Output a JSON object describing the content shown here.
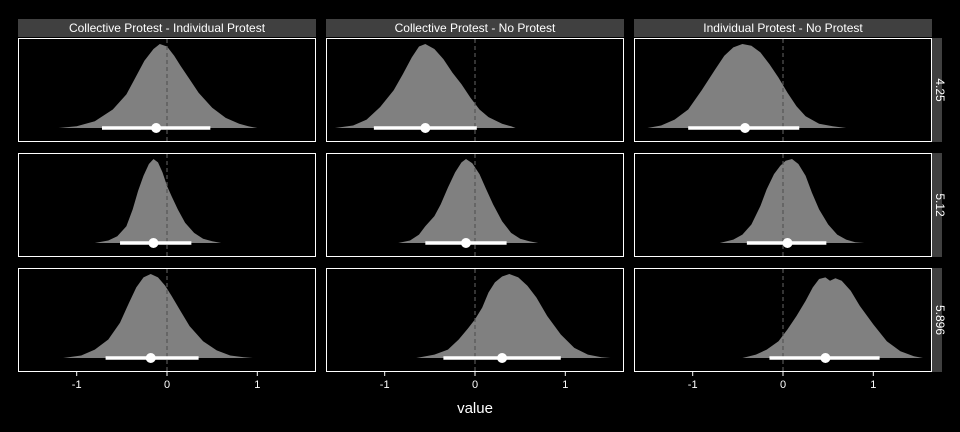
{
  "chart_data": {
    "type": "area",
    "xlabel": "value",
    "ylabel": "",
    "xlim": [
      -1.65,
      1.65
    ],
    "x_ticks": [
      "-1",
      "0",
      "1"
    ],
    "x_tick_values": [
      -1,
      0,
      1
    ],
    "reference_line_x": 0,
    "columns": [
      "Collective Protest - Individual Protest",
      "Collective Protest - No Protest",
      "Individual Protest - No Protest"
    ],
    "rows": [
      "4.25",
      "5.12",
      "5.896"
    ],
    "colors": {
      "background": "#000000",
      "density": "#808080",
      "interval": "#ffffff",
      "strip": "#404040",
      "panel_border": "#ffffff"
    },
    "panels": [
      {
        "row": "4.25",
        "col": "Collective Protest - Individual Protest",
        "point": -0.12,
        "interval": [
          -0.72,
          0.48
        ],
        "curve": [
          [
            -1.2,
            0
          ],
          [
            -1.0,
            0.02
          ],
          [
            -0.8,
            0.08
          ],
          [
            -0.6,
            0.22
          ],
          [
            -0.45,
            0.4
          ],
          [
            -0.35,
            0.6
          ],
          [
            -0.25,
            0.8
          ],
          [
            -0.15,
            0.94
          ],
          [
            -0.08,
            1.0
          ],
          [
            0.0,
            0.97
          ],
          [
            0.08,
            0.86
          ],
          [
            0.15,
            0.74
          ],
          [
            0.25,
            0.58
          ],
          [
            0.35,
            0.42
          ],
          [
            0.5,
            0.24
          ],
          [
            0.65,
            0.12
          ],
          [
            0.8,
            0.05
          ],
          [
            0.9,
            0.02
          ],
          [
            1.0,
            0
          ]
        ]
      },
      {
        "row": "4.25",
        "col": "Collective Protest - No Protest",
        "point": -0.55,
        "interval": [
          -1.12,
          0.02
        ],
        "curve": [
          [
            -1.55,
            0
          ],
          [
            -1.35,
            0.03
          ],
          [
            -1.2,
            0.1
          ],
          [
            -1.05,
            0.25
          ],
          [
            -0.9,
            0.45
          ],
          [
            -0.8,
            0.64
          ],
          [
            -0.7,
            0.84
          ],
          [
            -0.62,
            0.97
          ],
          [
            -0.55,
            1.0
          ],
          [
            -0.45,
            0.94
          ],
          [
            -0.35,
            0.82
          ],
          [
            -0.25,
            0.66
          ],
          [
            -0.15,
            0.52
          ],
          [
            -0.05,
            0.36
          ],
          [
            0.05,
            0.22
          ],
          [
            0.15,
            0.13
          ],
          [
            0.3,
            0.05
          ],
          [
            0.4,
            0.02
          ],
          [
            0.45,
            0
          ]
        ]
      },
      {
        "row": "4.25",
        "col": "Individual Protest - No Protest",
        "point": -0.42,
        "interval": [
          -1.05,
          0.18
        ],
        "curve": [
          [
            -1.5,
            0
          ],
          [
            -1.35,
            0.03
          ],
          [
            -1.2,
            0.1
          ],
          [
            -1.05,
            0.22
          ],
          [
            -0.9,
            0.45
          ],
          [
            -0.75,
            0.7
          ],
          [
            -0.65,
            0.86
          ],
          [
            -0.55,
            0.96
          ],
          [
            -0.45,
            1.0
          ],
          [
            -0.35,
            0.98
          ],
          [
            -0.25,
            0.9
          ],
          [
            -0.15,
            0.76
          ],
          [
            -0.05,
            0.6
          ],
          [
            0.05,
            0.42
          ],
          [
            0.15,
            0.26
          ],
          [
            0.25,
            0.14
          ],
          [
            0.4,
            0.05
          ],
          [
            0.55,
            0.02
          ],
          [
            0.7,
            0
          ]
        ]
      },
      {
        "row": "5.12",
        "col": "Collective Protest - Individual Protest",
        "point": -0.15,
        "interval": [
          -0.52,
          0.27
        ],
        "curve": [
          [
            -0.8,
            0
          ],
          [
            -0.65,
            0.03
          ],
          [
            -0.55,
            0.08
          ],
          [
            -0.45,
            0.2
          ],
          [
            -0.38,
            0.4
          ],
          [
            -0.32,
            0.62
          ],
          [
            -0.26,
            0.8
          ],
          [
            -0.2,
            0.94
          ],
          [
            -0.15,
            1.0
          ],
          [
            -0.1,
            0.96
          ],
          [
            -0.05,
            0.84
          ],
          [
            0.0,
            0.68
          ],
          [
            0.05,
            0.56
          ],
          [
            0.12,
            0.4
          ],
          [
            0.2,
            0.24
          ],
          [
            0.3,
            0.12
          ],
          [
            0.4,
            0.05
          ],
          [
            0.5,
            0.02
          ],
          [
            0.6,
            0
          ]
        ]
      },
      {
        "row": "5.12",
        "col": "Collective Protest - No Protest",
        "point": -0.1,
        "interval": [
          -0.55,
          0.35
        ],
        "curve": [
          [
            -0.85,
            0
          ],
          [
            -0.72,
            0.03
          ],
          [
            -0.62,
            0.1
          ],
          [
            -0.55,
            0.2
          ],
          [
            -0.45,
            0.32
          ],
          [
            -0.38,
            0.46
          ],
          [
            -0.3,
            0.66
          ],
          [
            -0.22,
            0.84
          ],
          [
            -0.15,
            0.96
          ],
          [
            -0.1,
            1.0
          ],
          [
            -0.03,
            0.95
          ],
          [
            0.05,
            0.82
          ],
          [
            0.12,
            0.65
          ],
          [
            0.2,
            0.46
          ],
          [
            0.3,
            0.26
          ],
          [
            0.4,
            0.12
          ],
          [
            0.5,
            0.05
          ],
          [
            0.6,
            0.02
          ],
          [
            0.7,
            0
          ]
        ]
      },
      {
        "row": "5.12",
        "col": "Individual Protest - No Protest",
        "point": 0.05,
        "interval": [
          -0.4,
          0.48
        ],
        "curve": [
          [
            -0.7,
            0
          ],
          [
            -0.55,
            0.04
          ],
          [
            -0.45,
            0.1
          ],
          [
            -0.35,
            0.22
          ],
          [
            -0.25,
            0.44
          ],
          [
            -0.18,
            0.64
          ],
          [
            -0.1,
            0.82
          ],
          [
            -0.03,
            0.92
          ],
          [
            0.03,
            0.98
          ],
          [
            0.1,
            1.0
          ],
          [
            0.17,
            0.94
          ],
          [
            0.25,
            0.8
          ],
          [
            0.32,
            0.6
          ],
          [
            0.4,
            0.4
          ],
          [
            0.5,
            0.22
          ],
          [
            0.6,
            0.1
          ],
          [
            0.7,
            0.04
          ],
          [
            0.8,
            0.01
          ],
          [
            0.9,
            0
          ]
        ]
      },
      {
        "row": "5.896",
        "col": "Collective Protest - Individual Protest",
        "point": -0.18,
        "interval": [
          -0.68,
          0.35
        ],
        "curve": [
          [
            -1.15,
            0
          ],
          [
            -0.95,
            0.03
          ],
          [
            -0.8,
            0.1
          ],
          [
            -0.65,
            0.22
          ],
          [
            -0.52,
            0.42
          ],
          [
            -0.42,
            0.66
          ],
          [
            -0.34,
            0.84
          ],
          [
            -0.26,
            0.96
          ],
          [
            -0.18,
            1.0
          ],
          [
            -0.1,
            0.96
          ],
          [
            -0.02,
            0.86
          ],
          [
            0.05,
            0.74
          ],
          [
            0.15,
            0.56
          ],
          [
            0.25,
            0.38
          ],
          [
            0.4,
            0.2
          ],
          [
            0.55,
            0.09
          ],
          [
            0.7,
            0.03
          ],
          [
            0.85,
            0.01
          ],
          [
            0.95,
            0
          ]
        ]
      },
      {
        "row": "5.896",
        "col": "Collective Protest - No Protest",
        "point": 0.3,
        "interval": [
          -0.35,
          0.95
        ],
        "curve": [
          [
            -0.65,
            0
          ],
          [
            -0.45,
            0.04
          ],
          [
            -0.3,
            0.1
          ],
          [
            -0.18,
            0.22
          ],
          [
            -0.08,
            0.35
          ],
          [
            0.0,
            0.46
          ],
          [
            0.08,
            0.6
          ],
          [
            0.15,
            0.78
          ],
          [
            0.22,
            0.9
          ],
          [
            0.3,
            0.97
          ],
          [
            0.38,
            1.0
          ],
          [
            0.48,
            0.96
          ],
          [
            0.58,
            0.86
          ],
          [
            0.68,
            0.72
          ],
          [
            0.8,
            0.5
          ],
          [
            0.95,
            0.28
          ],
          [
            1.1,
            0.12
          ],
          [
            1.25,
            0.04
          ],
          [
            1.4,
            0.01
          ],
          [
            1.5,
            0
          ]
        ]
      },
      {
        "row": "5.896",
        "col": "Individual Protest - No Protest",
        "point": 0.47,
        "interval": [
          -0.15,
          1.07
        ],
        "curve": [
          [
            -0.45,
            0
          ],
          [
            -0.3,
            0.04
          ],
          [
            -0.18,
            0.1
          ],
          [
            -0.05,
            0.2
          ],
          [
            0.05,
            0.34
          ],
          [
            0.15,
            0.5
          ],
          [
            0.25,
            0.68
          ],
          [
            0.33,
            0.84
          ],
          [
            0.4,
            0.94
          ],
          [
            0.47,
            0.96
          ],
          [
            0.52,
            0.92
          ],
          [
            0.58,
            0.95
          ],
          [
            0.65,
            0.92
          ],
          [
            0.75,
            0.8
          ],
          [
            0.85,
            0.62
          ],
          [
            1.0,
            0.4
          ],
          [
            1.15,
            0.2
          ],
          [
            1.3,
            0.08
          ],
          [
            1.45,
            0.02
          ],
          [
            1.55,
            0
          ]
        ]
      }
    ]
  }
}
